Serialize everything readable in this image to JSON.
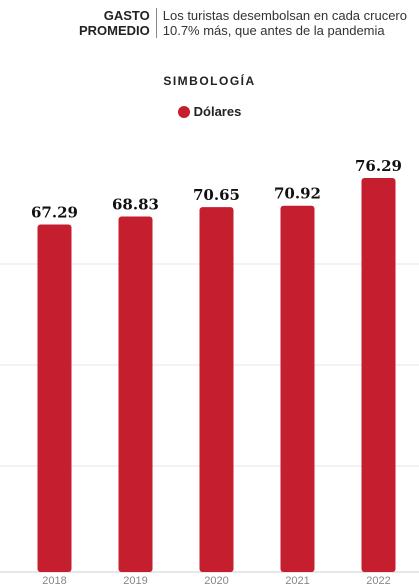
{
  "header": {
    "label_line1": "GASTO",
    "label_line2": "PROMEDIO",
    "text_line1": "Los turistas desembolsan en cada crucero",
    "text_line2": "10.7% más, que antes de la pandemia"
  },
  "legend": {
    "title": "SIMBOLOGÍA",
    "label": "Dólares",
    "color": "#c41e2f"
  },
  "chart_data": {
    "type": "bar",
    "categories": [
      "2018",
      "2019",
      "2020",
      "2021",
      "2022"
    ],
    "series": [
      {
        "name": "Dólares",
        "values": [
          67.29,
          68.83,
          70.65,
          70.92,
          76.29
        ]
      }
    ],
    "value_labels": [
      "67.29",
      "68.83",
      "70.65",
      "70.92",
      "76.29"
    ],
    "bar_color": "#c41e2f",
    "grid": true,
    "ylim": [
      0,
      76.29
    ]
  }
}
